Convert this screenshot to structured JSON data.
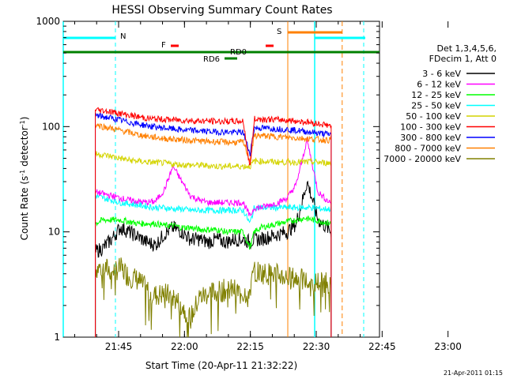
{
  "chart_data": {
    "type": "line",
    "title": "HESSI Observing Summary Count Rates",
    "xlabel": "Start Time (20-Apr-11 21:32:22)",
    "ylabel_main": "Count Rate (s",
    "ylabel_sup1": "-1",
    "ylabel_mid": " detector",
    "ylabel_sup2": "-1",
    "ylabel_end": ")",
    "x_unit": "minutes after 21:32:22",
    "xlim": [
      0,
      72
    ],
    "ylim": [
      1,
      1000
    ],
    "yscale": "log",
    "x_tick_labels": [
      "21:45",
      "22:00",
      "22:15",
      "22:30",
      "22:45",
      "23:00"
    ],
    "x_tick_values": [
      12.6,
      27.6,
      42.6,
      57.6,
      72.6,
      87.6
    ],
    "y_tick_labels": [
      "1",
      "10",
      "100",
      "1000"
    ],
    "y_tick_values": [
      1,
      10,
      100,
      1000
    ],
    "footer_date": "21-Apr-2011 01:15",
    "legend": {
      "title_line1": "Det 1,3,4,5,6,",
      "title_line2": "FDecim 1, Att 0",
      "entries": [
        {
          "label": "3 - 6 keV",
          "color": "#000000"
        },
        {
          "label": "6 - 12 keV",
          "color": "#ff00ff"
        },
        {
          "label": "12 - 25 keV",
          "color": "#00ff00"
        },
        {
          "label": "25 - 50 keV",
          "color": "#00ffff"
        },
        {
          "label": "50 - 100 keV",
          "color": "#d4d400"
        },
        {
          "label": "100 - 300 keV",
          "color": "#ff0000"
        },
        {
          "label": "300 - 800 keV",
          "color": "#0000ff"
        },
        {
          "label": "800 - 7000 keV",
          "color": "#ff8000"
        },
        {
          "label": "7000 - 20000 keV",
          "color": "#808000"
        }
      ]
    },
    "flags": {
      "N": {
        "label": "N",
        "color": "#00ffff"
      },
      "S": {
        "label": "S",
        "color": "#ff8000"
      },
      "F": {
        "label": "F",
        "color": "#ff0000"
      },
      "RD0": {
        "label": "RD0",
        "color": "#008000"
      },
      "RD6": {
        "label": "RD6",
        "color": "#008000"
      }
    },
    "series": [
      {
        "name": "7000 - 20000 keV",
        "color": "#808000",
        "x": [
          7.3,
          9,
          11,
          13,
          15,
          17,
          19,
          21,
          23,
          25,
          27,
          29,
          31,
          33,
          35,
          37,
          39,
          41,
          42.5,
          43.5,
          45,
          47,
          49,
          51,
          53,
          55,
          57,
          59,
          61
        ],
        "y": [
          4.5,
          4.6,
          4.3,
          4.5,
          3.8,
          3.5,
          2.8,
          2.5,
          2.6,
          2.4,
          2.0,
          1.5,
          2.4,
          2.6,
          2.7,
          2.8,
          2.8,
          2.6,
          2.8,
          4.3,
          4.1,
          4.0,
          3.9,
          3.7,
          3.6,
          3.4,
          3.3,
          3.4,
          3.3
        ]
      },
      {
        "name": "3 - 6 keV",
        "color": "#000000",
        "x": [
          7.3,
          9,
          11,
          13,
          15,
          17,
          19,
          21,
          23,
          25,
          27,
          29,
          31,
          33,
          35,
          37,
          39,
          41,
          42.5,
          43.5,
          45,
          47,
          49,
          51,
          53,
          54.5,
          55.5,
          56.5,
          58,
          60,
          61
        ],
        "y": [
          6.5,
          7.0,
          8.5,
          11,
          10,
          9.0,
          8.0,
          7.5,
          9.5,
          11,
          10,
          8.5,
          8.5,
          8.0,
          8.5,
          8.0,
          8.5,
          8.5,
          8.0,
          8.5,
          8.5,
          9.0,
          9.5,
          10,
          12,
          20,
          30,
          22,
          13,
          11,
          10
        ]
      },
      {
        "name": "12 - 25 keV",
        "color": "#00ff00",
        "x": [
          7.3,
          9,
          11,
          13,
          15,
          17,
          19,
          21,
          23,
          25,
          27,
          29,
          31,
          33,
          35,
          37,
          39,
          41,
          42.5,
          43.5,
          45,
          47,
          49,
          51,
          53,
          55,
          57,
          59,
          61
        ],
        "y": [
          12,
          13,
          13,
          13,
          12.5,
          12,
          12,
          12,
          11.5,
          11.5,
          11,
          11,
          10.5,
          10.5,
          10.5,
          10,
          10,
          10,
          7,
          10,
          11,
          11.5,
          12,
          12.5,
          13,
          13.5,
          13,
          12.5,
          12
        ]
      },
      {
        "name": "25 - 50 keV",
        "color": "#00ffff",
        "x": [
          7.3,
          9,
          11,
          13,
          15,
          17,
          19,
          21,
          23,
          25,
          27,
          29,
          31,
          33,
          35,
          37,
          39,
          41,
          42.5,
          43.5,
          45,
          47,
          49,
          51,
          53,
          55,
          57,
          59,
          61
        ],
        "y": [
          22,
          21,
          20,
          19,
          18.5,
          18,
          17.5,
          17,
          17,
          16.5,
          16.5,
          16,
          16,
          16,
          16,
          16,
          16,
          16,
          12,
          17,
          17,
          17,
          17,
          17,
          17,
          17,
          17,
          16.5,
          16.5
        ]
      },
      {
        "name": "6 - 12 keV",
        "color": "#ff00ff",
        "x": [
          7.3,
          9,
          11,
          13,
          15,
          17,
          19,
          21,
          23,
          25,
          27,
          29,
          31,
          33,
          35,
          37,
          39,
          41,
          42.5,
          43.5,
          45,
          47,
          49,
          51,
          53,
          54.5,
          55.5,
          56.5,
          58,
          60,
          61
        ],
        "y": [
          24,
          23,
          22,
          21,
          20,
          19.5,
          19,
          19.5,
          25,
          42,
          30,
          22,
          20,
          19,
          19,
          19,
          19,
          19,
          14,
          17,
          17,
          18,
          19,
          21,
          28,
          50,
          75,
          48,
          24,
          20,
          19
        ]
      },
      {
        "name": "50 - 100 keV",
        "color": "#d4d400",
        "x": [
          7.3,
          9,
          11,
          13,
          15,
          17,
          19,
          21,
          23,
          25,
          27,
          29,
          31,
          33,
          35,
          37,
          39,
          41,
          42.5,
          43.5,
          45,
          47,
          49,
          51,
          53,
          55,
          57,
          59,
          61
        ],
        "y": [
          55,
          54,
          52,
          50,
          48,
          47,
          46,
          45.5,
          45,
          44,
          43.5,
          43,
          43,
          42.5,
          42,
          42,
          42,
          42,
          42,
          47,
          47,
          46.5,
          46,
          46,
          46,
          46,
          46,
          45.5,
          45
        ]
      },
      {
        "name": "800 - 7000 keV",
        "color": "#ff8000",
        "x": [
          7.3,
          9,
          11,
          13,
          15,
          17,
          19,
          21,
          23,
          25,
          27,
          29,
          31,
          33,
          35,
          37,
          39,
          41,
          42.5,
          43.5,
          45,
          47,
          49,
          51,
          53,
          55,
          57,
          59,
          61
        ],
        "y": [
          105,
          100,
          96,
          92,
          88,
          84,
          81,
          79,
          77,
          76,
          75,
          74,
          73,
          72,
          72,
          71,
          71,
          71,
          48,
          82,
          82,
          81,
          80,
          79,
          78,
          77,
          76,
          75,
          74
        ]
      },
      {
        "name": "300 - 800 keV",
        "color": "#0000ff",
        "x": [
          7.3,
          9,
          11,
          13,
          15,
          17,
          19,
          21,
          23,
          25,
          27,
          29,
          31,
          33,
          35,
          37,
          39,
          41,
          42.5,
          43.5,
          45,
          47,
          49,
          51,
          53,
          55,
          57,
          59,
          61
        ],
        "y": [
          128,
          124,
          120,
          115,
          110,
          106,
          102,
          99,
          97,
          95,
          93,
          92,
          91,
          90,
          89,
          89,
          88,
          88,
          55,
          97,
          97,
          96,
          95,
          94,
          92,
          90,
          88,
          86,
          84
        ]
      },
      {
        "name": "100 - 300 keV",
        "color": "#ff0000",
        "x": [
          7.3,
          9,
          11,
          13,
          15,
          17,
          19,
          21,
          23,
          25,
          27,
          29,
          31,
          33,
          35,
          37,
          39,
          41,
          42.5,
          43.5,
          45,
          47,
          49,
          51,
          53,
          55,
          57,
          59,
          61
        ],
        "y": [
          145,
          142,
          138,
          133,
          128,
          124,
          120,
          118,
          117,
          116,
          115,
          114,
          113,
          113,
          112,
          112,
          112,
          112,
          40,
          118,
          118,
          117,
          116,
          115,
          113,
          111,
          108,
          105,
          102
        ]
      }
    ]
  }
}
